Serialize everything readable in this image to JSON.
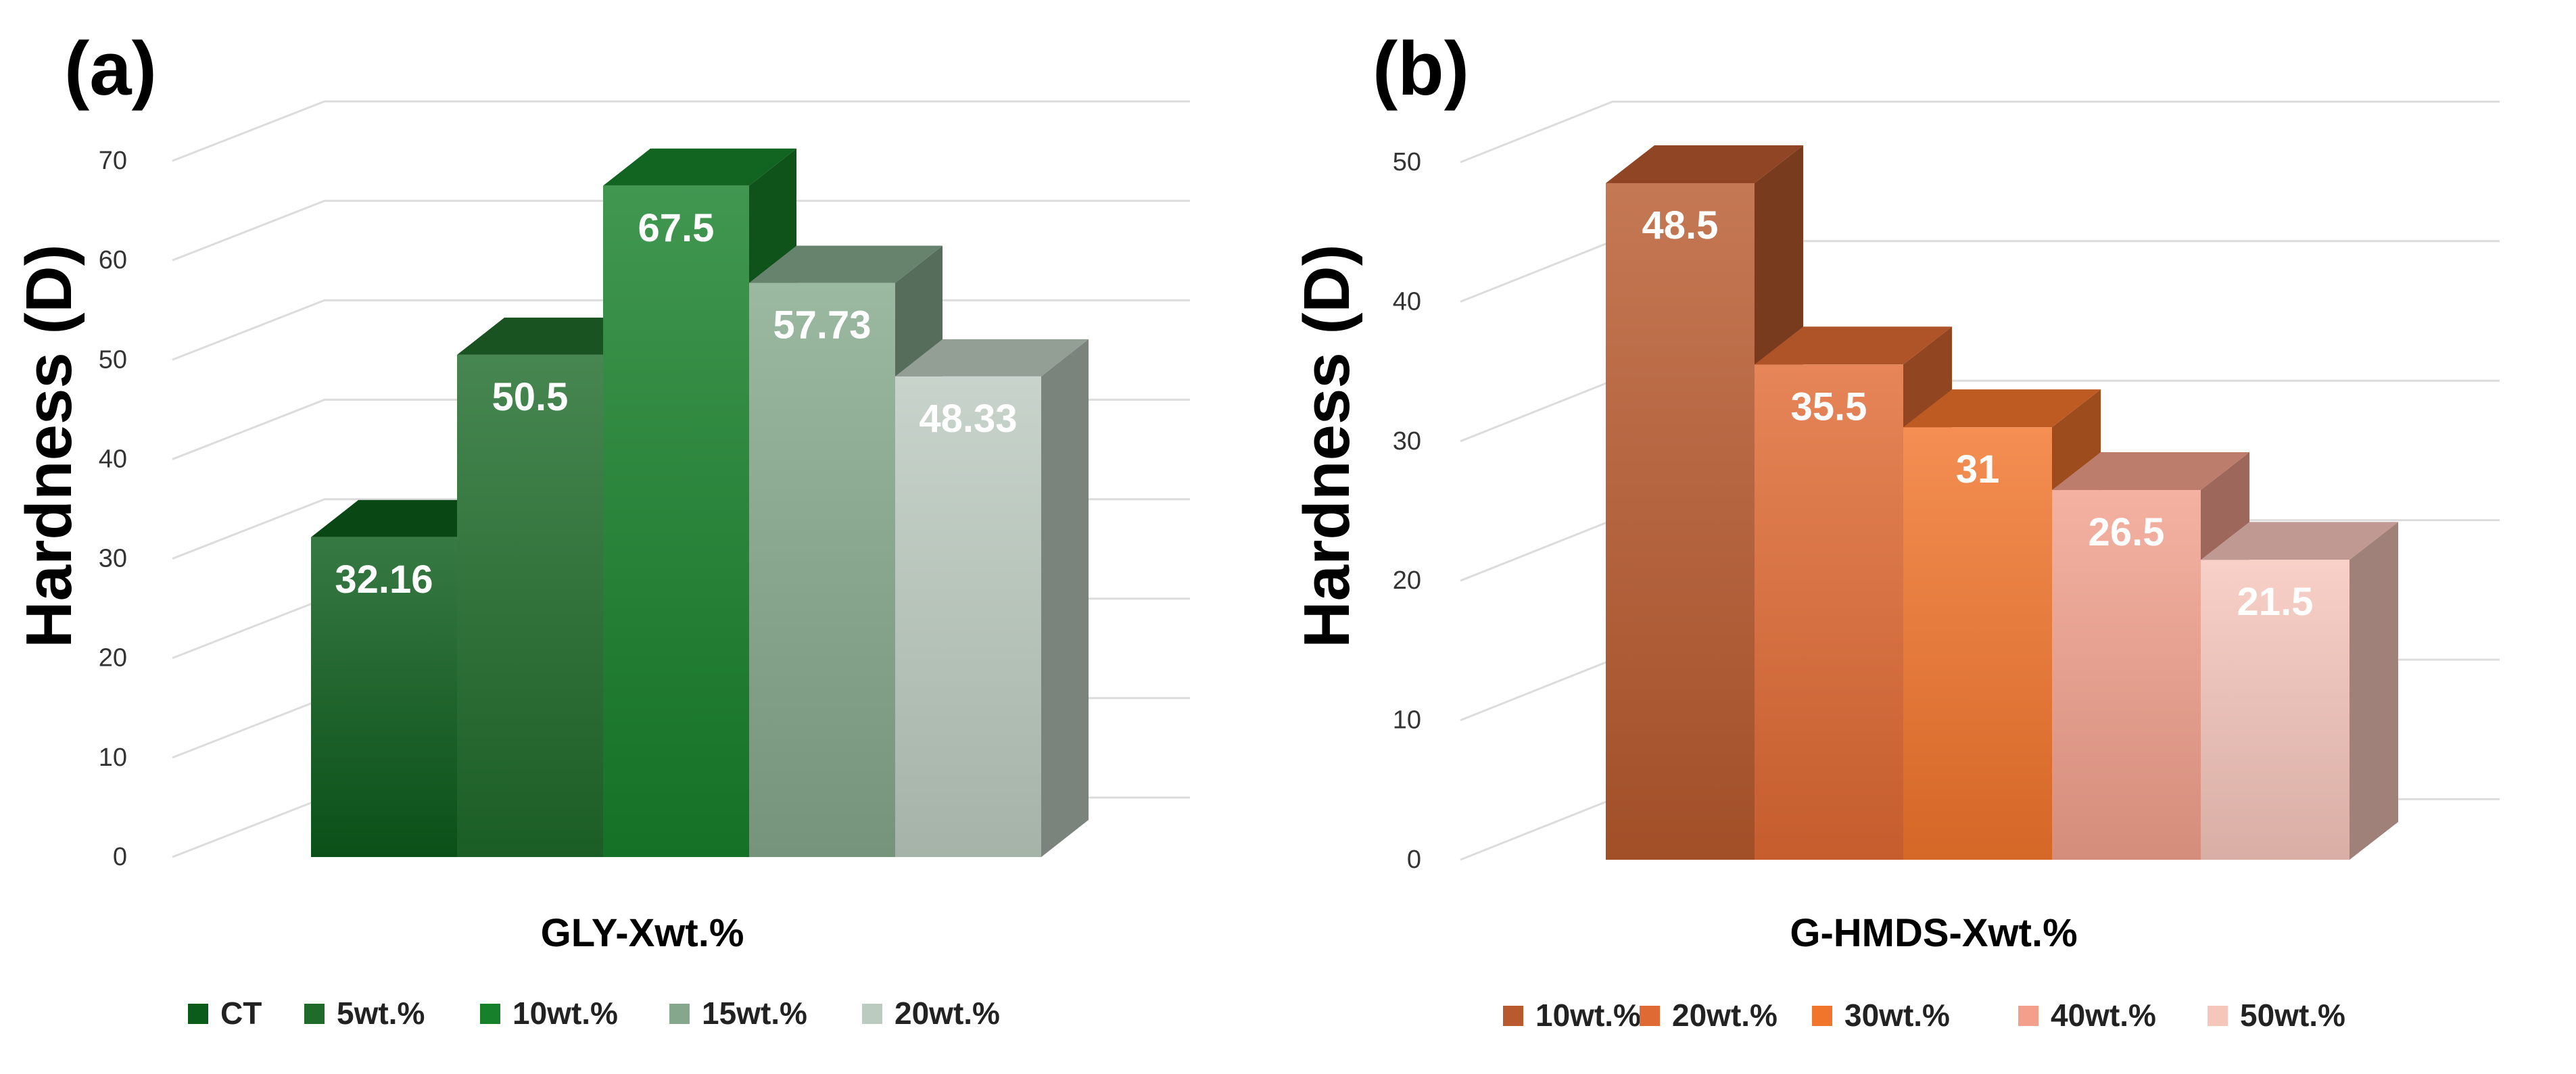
{
  "chart_data": [
    {
      "panel_label": "(a)",
      "type": "bar",
      "title": "",
      "xlabel": "GLY-Xwt.%",
      "ylabel": "Hardness (D)",
      "ylim": [
        0,
        70
      ],
      "ytick_labels": [
        "0",
        "10",
        "20",
        "30",
        "40",
        "50",
        "60",
        "70"
      ],
      "grid": true,
      "legend_position": "bottom",
      "series": [
        {
          "name": "CT",
          "value": 32.16,
          "label": "32.16",
          "color": "#0b5b1a"
        },
        {
          "name": "5wt.%",
          "value": 50.5,
          "label": "50.5",
          "color": "#1f6b2a"
        },
        {
          "name": "10wt.%",
          "value": 67.5,
          "label": "67.5",
          "color": "#17802a"
        },
        {
          "name": "15wt.%",
          "value": 57.73,
          "label": "57.73",
          "color": "#85a88c"
        },
        {
          "name": "20wt.%",
          "value": 48.33,
          "label": "48.33",
          "color": "#bccbbf"
        }
      ]
    },
    {
      "panel_label": "(b)",
      "type": "bar",
      "title": "",
      "xlabel": "G-HMDS-Xwt.%",
      "ylabel": "Hardness (D)",
      "ylim": [
        0,
        50
      ],
      "ytick_labels": [
        "0",
        "10",
        "20",
        "30",
        "40",
        "50"
      ],
      "grid": true,
      "legend_position": "bottom",
      "series": [
        {
          "name": "10wt.%",
          "value": 48.5,
          "label": "48.5",
          "color": "#b85a2e"
        },
        {
          "name": "20wt.%",
          "value": 35.5,
          "label": "35.5",
          "color": "#e06a33"
        },
        {
          "name": "30wt.%",
          "value": 31,
          "label": "31",
          "color": "#f2752c"
        },
        {
          "name": "40wt.%",
          "value": 26.5,
          "label": "26.5",
          "color": "#f2a08c"
        },
        {
          "name": "50wt.%",
          "value": 21.5,
          "label": "21.5",
          "color": "#f6c6bb"
        }
      ]
    }
  ]
}
